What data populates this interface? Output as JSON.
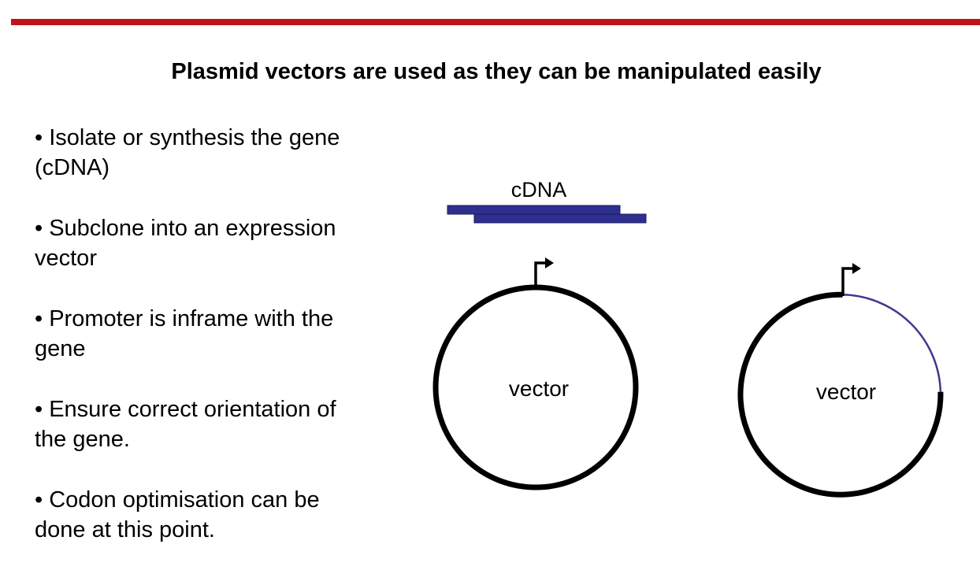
{
  "slide": {
    "title": "Plasmid vectors are used as they can be manipulated easily",
    "bullets": [
      "• Isolate or synthesis the gene (cDNA)",
      "• Subclone into an expression vector",
      "• Promoter is inframe with the gene",
      "• Ensure correct orientation of the gene.",
      "• Codon optimisation can be done at this point."
    ]
  },
  "diagram": {
    "cdna_label": "cDNA",
    "left_vector_label": "vector",
    "right_vector_label": "vector",
    "colors": {
      "accent_bar": "#c0141c",
      "cdna_strand": "#2e2f8f",
      "insert_arc": "#3d3a8c",
      "vector": "#000000"
    }
  }
}
